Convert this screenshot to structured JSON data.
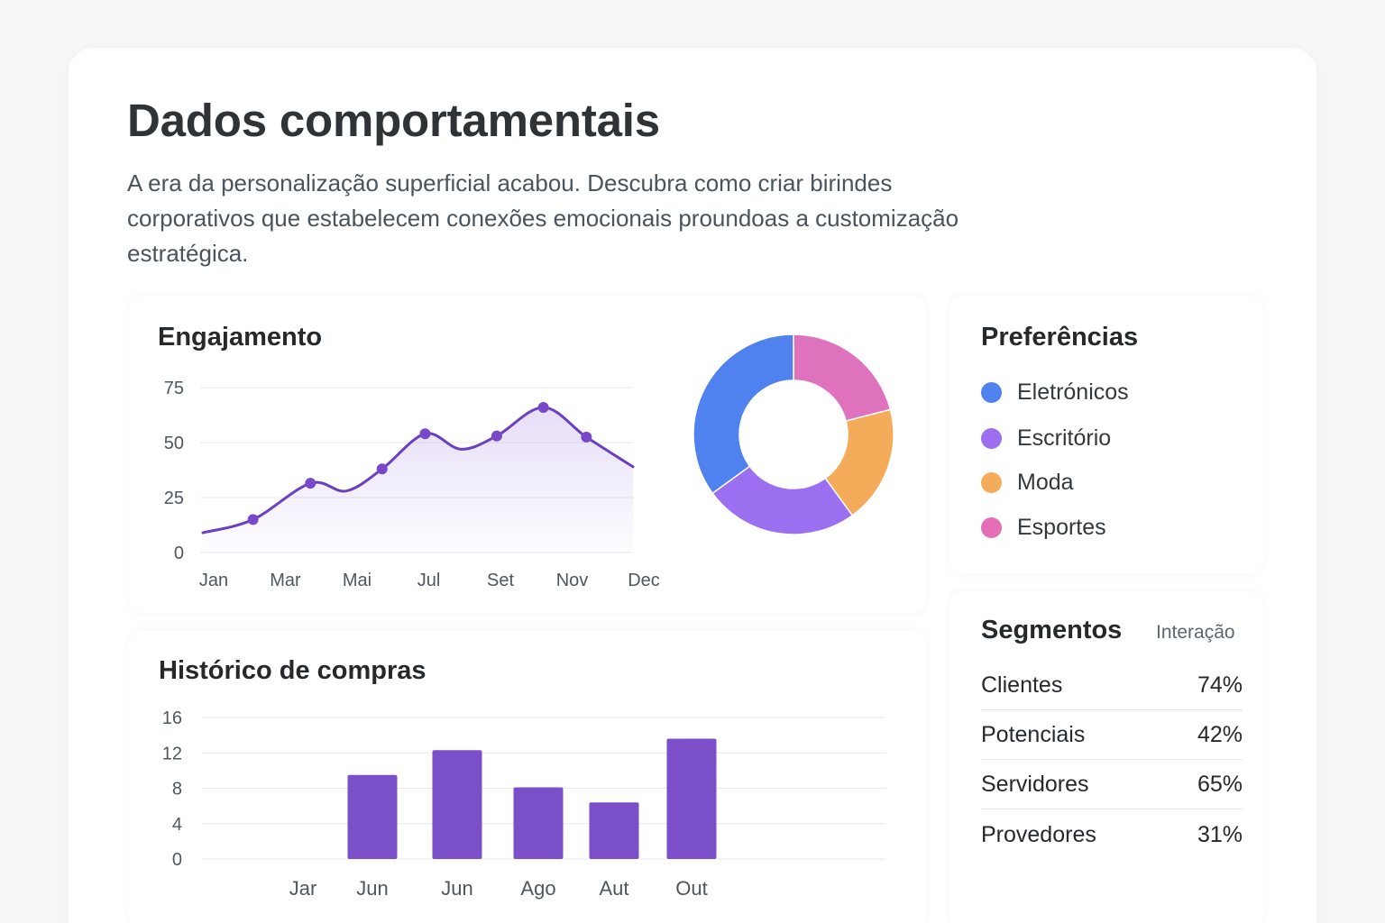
{
  "header": {
    "title": "Dados comportamentais",
    "subtitle": "A era da personalização superficial acabou. Descubra como criar birindes corporativos que estabelecem conexões emocionais proundoas a customização estratégica."
  },
  "engagement": {
    "title": "Engajamento"
  },
  "purchases": {
    "title": "Histórico de compras"
  },
  "preferences": {
    "title": "Preferências",
    "items": [
      {
        "label": "Eletrónicos",
        "color": "#4f82ef"
      },
      {
        "label": "Escritório",
        "color": "#9b6ff0"
      },
      {
        "label": "Moda",
        "color": "#f4ac5a"
      },
      {
        "label": "Esportes",
        "color": "#e46fb6"
      }
    ]
  },
  "segments": {
    "title": "Segmentos",
    "column_header": "Interação",
    "rows": [
      {
        "label": "Clientes",
        "value": "74%"
      },
      {
        "label": "Potenciais",
        "value": "42%"
      },
      {
        "label": "Servidores",
        "value": "65%"
      },
      {
        "label": "Provedores",
        "value": "31%"
      }
    ]
  },
  "chart_data": [
    {
      "type": "line",
      "title": "Engajamento",
      "x_tick_labels": [
        "Jan",
        "Mar",
        "Mai",
        "Jul",
        "Set",
        "Nov",
        "Dec"
      ],
      "y_ticks": [
        0,
        25,
        50,
        75
      ],
      "ylim": [
        0,
        75
      ],
      "grid": true,
      "color": "#6a3fc0",
      "curve": [
        {
          "x": 0.0,
          "y": 9
        },
        {
          "x": 0.7,
          "y": 15
        },
        {
          "x": 1.5,
          "y": 31.5
        },
        {
          "x": 2.0,
          "y": 28
        },
        {
          "x": 2.5,
          "y": 38
        },
        {
          "x": 3.1,
          "y": 54
        },
        {
          "x": 3.6,
          "y": 47
        },
        {
          "x": 4.1,
          "y": 53
        },
        {
          "x": 4.75,
          "y": 66
        },
        {
          "x": 5.35,
          "y": 52.5
        },
        {
          "x": 6.0,
          "y": 39
        }
      ],
      "markers": [
        {
          "x": 0.7,
          "y": 15
        },
        {
          "x": 1.5,
          "y": 31.5
        },
        {
          "x": 2.5,
          "y": 38
        },
        {
          "x": 3.1,
          "y": 54
        },
        {
          "x": 4.1,
          "y": 53
        },
        {
          "x": 4.75,
          "y": 66
        },
        {
          "x": 5.35,
          "y": 52.5
        }
      ]
    },
    {
      "type": "pie",
      "donut": true,
      "slices": [
        {
          "label": "Esportes",
          "value": 21,
          "color": "#de72bd"
        },
        {
          "label": "Moda",
          "value": 19,
          "color": "#f4ac5a"
        },
        {
          "label": "Escritório",
          "value": 25,
          "color": "#9b6ff0"
        },
        {
          "label": "Eletrónicos",
          "value": 35,
          "color": "#4f82ef"
        }
      ]
    },
    {
      "type": "bar",
      "title": "Histórico de compras",
      "categories": [
        "Jar",
        "Jun",
        "Jun",
        "Ago",
        "Aut",
        "Out"
      ],
      "values": [
        0,
        9.5,
        12.3,
        8.1,
        6.4,
        13.6
      ],
      "y_ticks": [
        0,
        4,
        8,
        12,
        16
      ],
      "ylim": [
        0,
        16
      ],
      "grid": true,
      "color": "#7b4fc9"
    }
  ]
}
